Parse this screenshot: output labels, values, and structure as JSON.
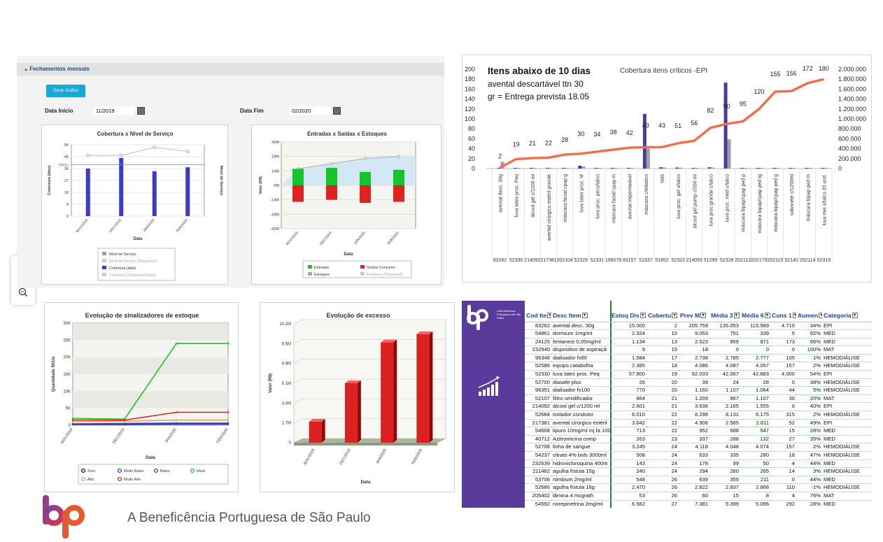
{
  "dashboard": {
    "section_title": "Fechamentos mensais",
    "generate_button": "Gerar Gráfico",
    "date_start_label": "Data Início",
    "date_start_value": "11/2019",
    "date_end_label": "Data Fim",
    "date_end_value": "02/2020",
    "zoom_in_icon": "zoom-in-icon",
    "zoom_out_icon": "zoom-out-icon"
  },
  "footer": {
    "org_name": "A Beneficência Portuguesa de São Paulo"
  },
  "logo_side_text": "A Beneficência Portuguesa de São Paulo",
  "colors": {
    "purple": "#5a3a9a",
    "blue": "#3a3acc",
    "green": "#16c42c",
    "red": "#dd2222",
    "orange": "#f07050",
    "table_header": "#1f3f9c"
  },
  "chart_data": [
    {
      "type": "bar",
      "title": "Cobertura x Nível de Serviço",
      "xlabel": "Data",
      "ylabel": "Cobertura (dias)",
      "y2label": "Nível de Serviço",
      "categories": [
        "NOV/2019",
        "DEC/2019",
        "JAN/2020",
        "FEB/2020"
      ],
      "yticks": [
        "0",
        "9",
        "18",
        "27",
        "36",
        "45",
        "54"
      ],
      "ylim": [
        0,
        54
      ],
      "series": [
        {
          "name": "Cobertura (dias)",
          "values": [
            36,
            44,
            34,
            37
          ]
        },
        {
          "name": "Nível de Serviço",
          "values": [
            46,
            46,
            52,
            49
          ]
        }
      ],
      "reference": {
        "label": "Média",
        "value": 39
      },
      "legend": [
        "Nível de Serviço",
        "Nível de Serviço (Disponível)",
        "Cobertura (dias)",
        "Cobertura (Disponível)(dias)"
      ]
    },
    {
      "type": "bar",
      "title": "Entradas x Saídas x Estoques",
      "xlabel": "Data",
      "ylabel": "Valor (R$)",
      "categories": [
        "NOV/2019",
        "DEC/2019",
        "JAN/2020",
        "FEB/2020"
      ],
      "yticks": [
        "-42M",
        "-28M",
        "-14M",
        "0M",
        "14M",
        "28M",
        "42M"
      ],
      "ylim": [
        -42,
        42
      ],
      "series": [
        {
          "name": "Entradas",
          "values": [
            16,
            17,
            13,
            15
          ]
        },
        {
          "name": "Saídas Consumo",
          "values": [
            -16,
            -14,
            -17,
            -16
          ]
        },
        {
          "name": "Estoques",
          "values": [
            16,
            21,
            26,
            28
          ]
        }
      ],
      "legend": [
        "Entradas",
        "Saídas Consumo",
        "Estoques",
        "Estoques (Disponível)"
      ]
    },
    {
      "type": "line",
      "title": "Evolução de sinalizadores de estoque",
      "xlabel": "Data",
      "ylabel": "Quantidade SKUs",
      "categories": [
        "NOV/2019",
        "DEC/2019",
        "JAN/2020",
        "FEB/2020"
      ],
      "yticks": [
        "0",
        "5K",
        "10K",
        "15K",
        "20K",
        "25K",
        "30K"
      ],
      "ylim": [
        0,
        30000
      ],
      "series": [
        {
          "name": "Zero",
          "values": [
            300,
            300,
            400,
            400
          ]
        },
        {
          "name": "Muito Baixo",
          "values": [
            200,
            200,
            300,
            300
          ]
        },
        {
          "name": "Baixo",
          "values": [
            400,
            500,
            600,
            600
          ]
        },
        {
          "name": "Ideal",
          "values": [
            2000,
            1800,
            24000,
            24000
          ]
        },
        {
          "name": "Alto",
          "values": [
            1000,
            1200,
            1500,
            1500
          ]
        },
        {
          "name": "Muito Alto",
          "values": [
            1500,
            1500,
            3800,
            3800
          ]
        }
      ],
      "legend": [
        "Zero",
        "Muito Baixo",
        "Baixo",
        "Ideal",
        "Alto",
        "Muito Alto"
      ]
    },
    {
      "type": "bar",
      "title": "Evolução de excesso",
      "xlabel": "Data",
      "ylabel": "Valor (R$)",
      "categories": [
        "NOV/2019",
        "DEC/2019",
        "JAN/2020",
        "FEB/2020"
      ],
      "yticks": [
        "0",
        "1.7M",
        "3.4M",
        "5.1M",
        "6.8M",
        "8.5M",
        "10.2M"
      ],
      "ylim": [
        0,
        10.2
      ],
      "values": [
        1.8,
        5.1,
        8.6,
        9.3
      ]
    },
    {
      "type": "bar",
      "title": "Cobertura itens críticos -EPI",
      "annotation": [
        "Itens abaixo de 10 dias",
        "avental descartável ttn 30",
        "gr = Entrega prevista 18.05"
      ],
      "yticks_left": [
        "0",
        "20",
        "40",
        "60",
        "80",
        "100",
        "120",
        "140",
        "160",
        "180",
        "200"
      ],
      "yticks_right": [
        "0",
        "200.000",
        "400.000",
        "600.000",
        "800.000",
        "1.000.000",
        "1.200.000",
        "1.400.000",
        "1.600.000",
        "1.800.000",
        "2.000.000"
      ],
      "categories": [
        "avental desc. 30g",
        "luva latex proc. Peq",
        "álcool gel c/1200 ml",
        "avental cirúrgico estéril grande",
        "máscara facial cpap g",
        "luva latex proc. M",
        "luva proc. pecs/talco",
        "máscara facial cpap m",
        "avental impermeável",
        "máscara c/elástico",
        "N95",
        "luva proc. gel s/talco",
        "álcool gel pump c/330 ml",
        "luva proc.grande c/talco",
        "luva proc. méd c/talco",
        "máscara bipap/cpap ped p",
        "máscara bipap/cpap ped tg",
        "máscara bipap/cpap ped g",
        "sabonete c/1250ml",
        "máscara bipap ped m",
        "luva mei s/talco 20 und."
      ],
      "codes": [
        "83262",
        "52330",
        "214092",
        "217381",
        "202104",
        "52329",
        "52331",
        "198076",
        "83157",
        "52337",
        "51952",
        "52323",
        "214093",
        "51299",
        "52328",
        "202113",
        "202179",
        "202115",
        "52140",
        "202114",
        "52319"
      ],
      "labels": [
        "2",
        "19",
        "21",
        "22",
        "28",
        "30",
        "34",
        "38",
        "42",
        "43",
        "43",
        "51",
        "56",
        "82",
        "90",
        "95",
        "120",
        "155",
        "156",
        "172",
        "180"
      ],
      "series": [
        {
          "name": "Cobertura",
          "values": [
            2,
            19,
            21,
            22,
            28,
            30,
            34,
            38,
            42,
            43,
            43,
            51,
            56,
            82,
            90,
            95,
            120,
            155,
            156,
            172,
            180
          ]
        },
        {
          "name": "Estoque",
          "values": [
            15000,
            2300,
            1134,
            9,
            1584,
            57900,
            26,
            200,
            5000,
            1100000,
            25000,
            21000,
            3000,
            25000,
            1730000,
            0,
            0,
            0,
            0,
            0,
            0
          ]
        },
        {
          "name": "Média",
          "values": [
            135000,
            9000,
            850,
            0,
            2700,
            42000,
            24,
            200,
            4000,
            400000,
            21000,
            18000,
            2800,
            20000,
            590000,
            0,
            0,
            0,
            0,
            0,
            0
          ]
        }
      ]
    }
  ],
  "table": {
    "headers": [
      "Cod Ite",
      "Desc Item",
      "Estoq Dis",
      "Cobertu",
      "Prev M",
      "Média 3",
      "Média 6",
      "Cons 1",
      "Aumen",
      "Categoria"
    ],
    "rows": [
      [
        "83262",
        "avental desc. 30g",
        "15.000",
        "2",
        "205.759",
        "135.053",
        "115.569",
        "4.710",
        "34%",
        "EPI"
      ],
      [
        "54861",
        "dormium 1mg/ml",
        "2.324",
        "10",
        "9.053",
        "751",
        "339",
        "5",
        "92%",
        "MED"
      ],
      [
        "24125",
        "fentanest 0,05mg/ml",
        "1.134",
        "13",
        "2.523",
        "859",
        "871",
        "173",
        "66%",
        "MED"
      ],
      [
        "232940",
        "dispositivo de aspiraçã",
        "9",
        "15",
        "18",
        "0",
        "0",
        "0",
        "100%",
        "MAT"
      ],
      [
        "96348",
        "dialisador fx80",
        "1.584",
        "17",
        "2.738",
        "2.785",
        "2.777",
        "105",
        "1%",
        "HEMODIÁLISE"
      ],
      [
        "52586",
        "equipo catabolha",
        "2.385",
        "18",
        "4.086",
        "4.087",
        "4.057",
        "157",
        "2%",
        "HEMODIÁLISE"
      ],
      [
        "52330",
        "luva latex proc. Peq",
        "57.900",
        "19",
        "92.033",
        "42.067",
        "42.883",
        "4.000",
        "54%",
        "EPI"
      ],
      [
        "52700",
        "diasafe plus",
        "26",
        "20",
        "39",
        "24",
        "28",
        "0",
        "38%",
        "HEMODIÁLISE"
      ],
      [
        "96351",
        "dialisador fx100",
        "770",
        "20",
        "1.160",
        "1.107",
        "1.064",
        "44",
        "5%",
        "HEMODIÁLISE"
      ],
      [
        "52107",
        "filtro umidificador",
        "864",
        "21",
        "1.209",
        "967",
        "1.107",
        "30",
        "20%",
        "MAT"
      ],
      [
        "214092",
        "álcool gel c/1200 ml",
        "2.601",
        "21",
        "3.636",
        "2.165",
        "1.555",
        "0",
        "40%",
        "EPI"
      ],
      [
        "52684",
        "isolador condutor",
        "6.010",
        "22",
        "8.296",
        "8.131",
        "8.175",
        "315",
        "2%",
        "HEMODIÁLISE"
      ],
      [
        "217381",
        "avental cirúrgico estéril",
        "3.642",
        "22",
        "4.906",
        "2.585",
        "2.811",
        "52",
        "49%",
        "EPI"
      ],
      [
        "54608",
        "lipuro 10mg/ml inj fa 100",
        "713",
        "22",
        "952",
        "688",
        "547",
        "15",
        "28%",
        "MED"
      ],
      [
        "40712",
        "Azitromicina comp",
        "263",
        "23",
        "337",
        "288",
        "132",
        "27",
        "35%",
        "MED"
      ],
      [
        "52708",
        "linha de sangue",
        "3.245",
        "24",
        "4.118",
        "4.048",
        "4.074",
        "157",
        "2%",
        "HEMODIÁLISE"
      ],
      [
        "54237",
        "citrato 4% bols 3000ml",
        "508",
        "24",
        "633",
        "335",
        "280",
        "18",
        "47%",
        "HEMODIÁLISE"
      ],
      [
        "232639",
        "hidroxicloroquina 400m",
        "143",
        "24",
        "178",
        "99",
        "50",
        "4",
        "44%",
        "MED"
      ],
      [
        "211482",
        "agulha fístula 15g",
        "240",
        "24",
        "294",
        "260",
        "265",
        "14",
        "3%",
        "HEMODIÁLISE"
      ],
      [
        "53706",
        "nimbium 2mg/ml",
        "548",
        "26",
        "639",
        "355",
        "211",
        "0",
        "44%",
        "MED"
      ],
      [
        "52686",
        "agulha fístula 16g",
        "2.470",
        "26",
        "2.822",
        "2.837",
        "2.868",
        "110",
        "-1%",
        "HEMODIÁLISE"
      ],
      [
        "205402",
        "lâmina 4 mcgrath",
        "53",
        "26",
        "60",
        "15",
        "8",
        "4",
        "76%",
        "MAT"
      ],
      [
        "54592",
        "norepinefrina 2mg/ml",
        "6.582",
        "27",
        "7.381",
        "5.399",
        "5.096",
        "292",
        "28%",
        "MED"
      ],
      [
        "221270",
        "dialisador av 1000",
        "121",
        "28",
        "129",
        "55",
        "47",
        "5",
        "57%",
        "HEMODIÁLISE"
      ],
      [
        "202104",
        "máscara facial cpap g",
        "10",
        "28",
        "11",
        "10",
        "13",
        "0",
        "3%",
        "EPI"
      ]
    ]
  }
}
